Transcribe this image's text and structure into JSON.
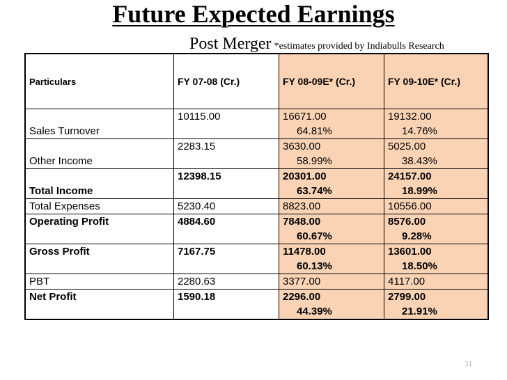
{
  "title": "Future Expected Earnings",
  "subtitle": "Post Merger",
  "note": "*estimates provided by Indiabulls Research",
  "page_number": "21",
  "colors": {
    "highlight": "#fad3b5"
  },
  "table": {
    "headers": [
      "Particulars",
      "FY 07-08 (Cr.)",
      "FY 08-09E* (Cr.)",
      "FY 09-10E* (Cr.)"
    ],
    "rows": [
      {
        "label": "Sales Turnover",
        "v1": "10115.00",
        "v2": "16671.00",
        "p2": "64.81%",
        "v3": "19132.00",
        "p3": "14.76%"
      },
      {
        "label": "Other Income",
        "v1": "2283.15",
        "v2": "3630.00",
        "p2": "58.99%",
        "v3": "5025.00",
        "p3": "38.43%"
      },
      {
        "label": "Total Income",
        "v1": "12398.15",
        "v2": "20301.00",
        "p2": "63.74%",
        "v3": "24157.00",
        "p3": "18.99%"
      },
      {
        "label": "Total Expenses",
        "v1": "5230.40",
        "v2": "8823.00",
        "v3": "10556.00"
      },
      {
        "label": "Operating Profit",
        "v1": "4884.60",
        "v2": "7848.00",
        "p2": "60.67%",
        "v3": "8576.00",
        "p3": "9.28%"
      },
      {
        "label": "Gross Profit",
        "v1": "7167.75",
        "v2": "11478.00",
        "p2": "60.13%",
        "v3": "13601.00",
        "p3": "18.50%"
      },
      {
        "label": "PBT",
        "v1": "2280.63",
        "v2": "3377.00",
        "v3": "4117.00"
      },
      {
        "label": "Net Profit",
        "v1": "1590.18",
        "v2": "2296.00",
        "p2": "44.39%",
        "v3": "2799.00",
        "p3": "21.91%"
      }
    ]
  }
}
